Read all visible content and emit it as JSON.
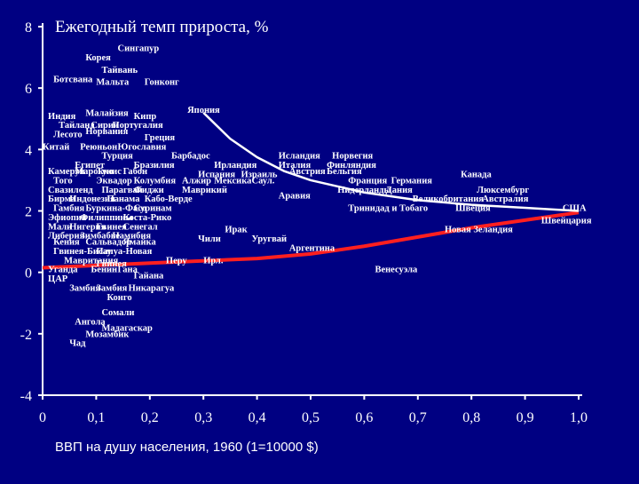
{
  "colors": {
    "background": "#000082",
    "axis": "#ffffff",
    "text": "#ffffff",
    "trend_curve": "#ffffff",
    "fit_line": "#ff1f1f"
  },
  "chart_data": {
    "type": "scatter",
    "title": "Ежегодный темп прироста, %",
    "xlabel": "ВВП на душу населения, 1960 (1=10000 $)",
    "ylabel": "",
    "xlim": [
      0,
      1.0
    ],
    "ylim": [
      -4,
      8
    ],
    "x_ticks": [
      "0",
      "0,1",
      "0,2",
      "0,3",
      "0,4",
      "0,5",
      "0,6",
      "0,7",
      "0,8",
      "0,9",
      "1,0"
    ],
    "y_ticks": [
      "8",
      "6",
      "4",
      "2",
      "0",
      "-2",
      "-4"
    ],
    "grid": false,
    "series": [
      {
        "name": "",
        "points": [
          {
            "label": "Сингапур",
            "x": 0.14,
            "y": 7.2
          },
          {
            "label": "Корея",
            "x": 0.08,
            "y": 6.9
          },
          {
            "label": "Тайвань",
            "x": 0.11,
            "y": 6.5
          },
          {
            "label": "Ботсвана",
            "x": 0.02,
            "y": 6.2
          },
          {
            "label": "Мальта",
            "x": 0.1,
            "y": 6.1
          },
          {
            "label": "Гонконг",
            "x": 0.19,
            "y": 6.1
          },
          {
            "label": "Япония",
            "x": 0.27,
            "y": 5.2
          },
          {
            "label": "Индия",
            "x": 0.01,
            "y": 5.0
          },
          {
            "label": "Малайзия",
            "x": 0.08,
            "y": 5.1
          },
          {
            "label": "Кипр",
            "x": 0.17,
            "y": 5.0
          },
          {
            "label": "Тайланд",
            "x": 0.03,
            "y": 4.7
          },
          {
            "label": "Сирия",
            "x": 0.09,
            "y": 4.7
          },
          {
            "label": "Португалия",
            "x": 0.13,
            "y": 4.7
          },
          {
            "label": "Норвания",
            "x": 0.08,
            "y": 4.5
          },
          {
            "label": "Лесото",
            "x": 0.02,
            "y": 4.4
          },
          {
            "label": "Греция",
            "x": 0.19,
            "y": 4.3
          },
          {
            "label": "Китай",
            "x": 0.0,
            "y": 4.0
          },
          {
            "label": "Реюньон",
            "x": 0.07,
            "y": 4.0
          },
          {
            "label": "Югославия",
            "x": 0.14,
            "y": 4.0
          },
          {
            "label": "Турция",
            "x": 0.11,
            "y": 3.7
          },
          {
            "label": "Барбадос",
            "x": 0.24,
            "y": 3.7
          },
          {
            "label": "Исландия",
            "x": 0.44,
            "y": 3.7
          },
          {
            "label": "Норвегия",
            "x": 0.54,
            "y": 3.7
          },
          {
            "label": "Египет",
            "x": 0.06,
            "y": 3.4
          },
          {
            "label": "Бразилия",
            "x": 0.17,
            "y": 3.4
          },
          {
            "label": "Ирландия",
            "x": 0.32,
            "y": 3.4
          },
          {
            "label": "Италия",
            "x": 0.44,
            "y": 3.4
          },
          {
            "label": "Финляндия",
            "x": 0.53,
            "y": 3.4
          },
          {
            "label": "Камерун",
            "x": 0.01,
            "y": 3.2
          },
          {
            "label": "Марокко",
            "x": 0.06,
            "y": 3.2
          },
          {
            "label": "Тунис",
            "x": 0.1,
            "y": 3.2
          },
          {
            "label": "Габон",
            "x": 0.15,
            "y": 3.2
          },
          {
            "label": "Испания",
            "x": 0.29,
            "y": 3.1
          },
          {
            "label": "Израиль",
            "x": 0.37,
            "y": 3.1
          },
          {
            "label": "Австрия",
            "x": 0.46,
            "y": 3.2
          },
          {
            "label": "Бельгия",
            "x": 0.53,
            "y": 3.2
          },
          {
            "label": "Канада",
            "x": 0.78,
            "y": 3.1
          },
          {
            "label": "Того",
            "x": 0.02,
            "y": 2.9
          },
          {
            "label": "Эквадор",
            "x": 0.1,
            "y": 2.9
          },
          {
            "label": "Колумбия",
            "x": 0.17,
            "y": 2.9
          },
          {
            "label": "Алжир",
            "x": 0.26,
            "y": 2.9
          },
          {
            "label": "Мексика",
            "x": 0.32,
            "y": 2.9
          },
          {
            "label": "Саул.",
            "x": 0.39,
            "y": 2.9
          },
          {
            "label": "Франция",
            "x": 0.57,
            "y": 2.9
          },
          {
            "label": "Германия",
            "x": 0.65,
            "y": 2.9
          },
          {
            "label": "Свазиленд",
            "x": 0.01,
            "y": 2.6
          },
          {
            "label": "Парагвай",
            "x": 0.11,
            "y": 2.6
          },
          {
            "label": "Фиджи",
            "x": 0.17,
            "y": 2.6
          },
          {
            "label": "Маврикий",
            "x": 0.26,
            "y": 2.6
          },
          {
            "label": "Нидерланды",
            "x": 0.55,
            "y": 2.6
          },
          {
            "label": "Дания",
            "x": 0.64,
            "y": 2.6
          },
          {
            "label": "Люксембург",
            "x": 0.81,
            "y": 2.6
          },
          {
            "label": "Бирма",
            "x": 0.01,
            "y": 2.3
          },
          {
            "label": "Индонезия",
            "x": 0.05,
            "y": 2.3
          },
          {
            "label": "Панама",
            "x": 0.12,
            "y": 2.3
          },
          {
            "label": "Кабо-Верде",
            "x": 0.19,
            "y": 2.3
          },
          {
            "label": "Аравия",
            "x": 0.44,
            "y": 2.4
          },
          {
            "label": "Великобритания",
            "x": 0.69,
            "y": 2.3
          },
          {
            "label": "Австралия",
            "x": 0.82,
            "y": 2.3
          },
          {
            "label": "Гамбия",
            "x": 0.02,
            "y": 2.0
          },
          {
            "label": "Буркина-Фасо",
            "x": 0.08,
            "y": 2.0
          },
          {
            "label": "Суринам",
            "x": 0.17,
            "y": 2.0
          },
          {
            "label": "Тринидад и Тобаго",
            "x": 0.57,
            "y": 2.0
          },
          {
            "label": "Швеция",
            "x": 0.77,
            "y": 2.0
          },
          {
            "label": "США",
            "x": 0.97,
            "y": 2.0
          },
          {
            "label": "Эфиопия",
            "x": 0.01,
            "y": 1.7
          },
          {
            "label": "Филиппины",
            "x": 0.07,
            "y": 1.7
          },
          {
            "label": "Коста-Рико",
            "x": 0.15,
            "y": 1.7
          },
          {
            "label": "Швейцария",
            "x": 0.93,
            "y": 1.6
          },
          {
            "label": "Мали",
            "x": 0.01,
            "y": 1.4
          },
          {
            "label": "Нигерия",
            "x": 0.05,
            "y": 1.4
          },
          {
            "label": "Гвинея",
            "x": 0.1,
            "y": 1.4
          },
          {
            "label": "Сенегал",
            "x": 0.15,
            "y": 1.4
          },
          {
            "label": "Ирак",
            "x": 0.34,
            "y": 1.3
          },
          {
            "label": "Новая Зеландия",
            "x": 0.75,
            "y": 1.3
          },
          {
            "label": "Либерия",
            "x": 0.01,
            "y": 1.1
          },
          {
            "label": "Зимбабве",
            "x": 0.07,
            "y": 1.1
          },
          {
            "label": "Намибия",
            "x": 0.13,
            "y": 1.1
          },
          {
            "label": "Чили",
            "x": 0.29,
            "y": 1.0
          },
          {
            "label": "Уругвай",
            "x": 0.39,
            "y": 1.0
          },
          {
            "label": "Кения",
            "x": 0.02,
            "y": 0.9
          },
          {
            "label": "Сальвадор",
            "x": 0.08,
            "y": 0.9
          },
          {
            "label": "Ямайка",
            "x": 0.15,
            "y": 0.9
          },
          {
            "label": "Аргентина",
            "x": 0.46,
            "y": 0.7
          },
          {
            "label": "Гвинея-Бисау",
            "x": 0.02,
            "y": 0.6
          },
          {
            "label": "Папуа-Новая",
            "x": 0.1,
            "y": 0.6
          },
          {
            "label": "Мавритания",
            "x": 0.04,
            "y": 0.3
          },
          {
            "label": "Гвинея",
            "x": 0.1,
            "y": 0.2
          },
          {
            "label": "Перу",
            "x": 0.23,
            "y": 0.3
          },
          {
            "label": "Ирл.",
            "x": 0.3,
            "y": 0.3
          },
          {
            "label": "Венесуэла",
            "x": 0.62,
            "y": 0.0
          },
          {
            "label": "Уганда",
            "x": 0.01,
            "y": 0.0
          },
          {
            "label": "Бенин",
            "x": 0.09,
            "y": 0.0
          },
          {
            "label": "Гана",
            "x": 0.14,
            "y": 0.0
          },
          {
            "label": "ЦАР",
            "x": 0.01,
            "y": -0.3
          },
          {
            "label": "Гайана",
            "x": 0.17,
            "y": -0.2
          },
          {
            "label": "Замбия",
            "x": 0.05,
            "y": -0.6
          },
          {
            "label": "Замбия",
            "x": 0.1,
            "y": -0.6
          },
          {
            "label": "Никарагуа",
            "x": 0.16,
            "y": -0.6
          },
          {
            "label": "Конго",
            "x": 0.12,
            "y": -0.9
          },
          {
            "label": "Сомали",
            "x": 0.11,
            "y": -1.4
          },
          {
            "label": "Ангола",
            "x": 0.06,
            "y": -1.7
          },
          {
            "label": "Мадагаскар",
            "x": 0.11,
            "y": -1.9
          },
          {
            "label": "Мозамбик",
            "x": 0.08,
            "y": -2.1
          },
          {
            "label": "Чад",
            "x": 0.05,
            "y": -2.4
          }
        ]
      }
    ],
    "trend_curve": {
      "x": [
        0.3,
        0.35,
        0.4,
        0.45,
        0.5,
        0.6,
        0.7,
        0.8,
        0.9,
        1.0
      ],
      "y": [
        5.2,
        4.35,
        3.75,
        3.3,
        3.0,
        2.6,
        2.35,
        2.2,
        2.1,
        2.0
      ]
    },
    "fit_line": {
      "x": [
        0.0,
        0.2,
        0.4,
        0.5,
        0.6,
        0.7,
        0.8,
        0.9,
        1.0
      ],
      "y": [
        0.15,
        0.3,
        0.45,
        0.6,
        0.85,
        1.15,
        1.45,
        1.7,
        1.95
      ]
    }
  }
}
